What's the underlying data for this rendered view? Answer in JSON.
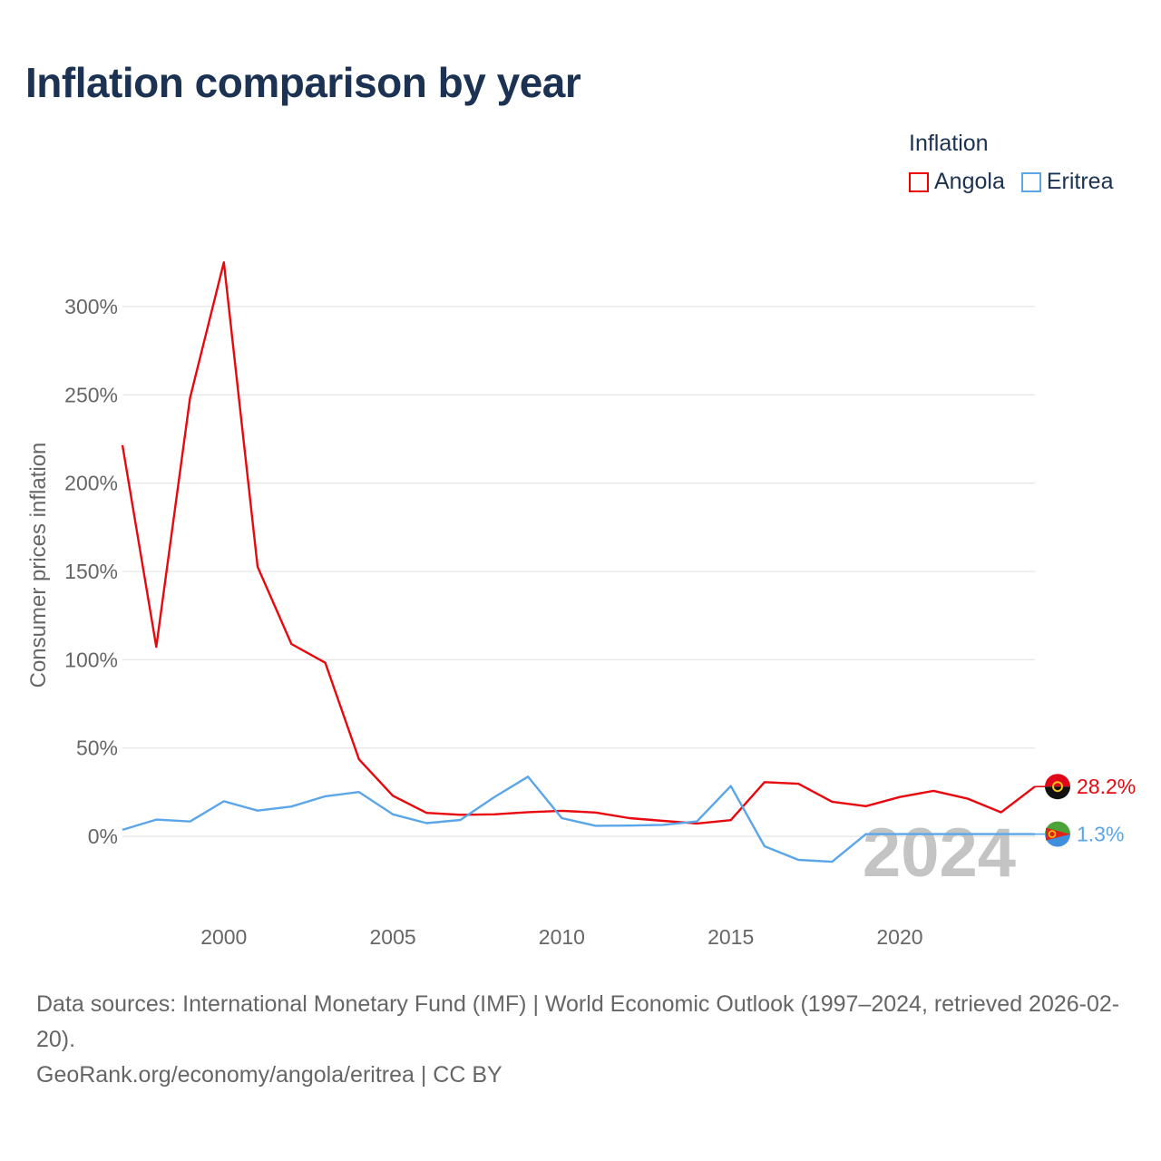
{
  "title": "Inflation comparison by year",
  "legend": {
    "title": "Inflation",
    "items": [
      {
        "label": "Angola",
        "color": "#e8080d"
      },
      {
        "label": "Eritrea",
        "color": "#5ba6e8"
      }
    ]
  },
  "source": {
    "line1": "Data sources: International Monetary Fund (IMF) | World Economic Outlook (1997–2024, retrieved 2026-02-20).",
    "line2": "GeoRank.org/economy/angola/eritrea | CC BY"
  },
  "chart_data": {
    "type": "line",
    "title": "Inflation comparison by year",
    "xlabel": "",
    "ylabel": "Consumer prices inflation",
    "xlim": [
      1997,
      2024
    ],
    "ylim": [
      -40,
      340
    ],
    "yticks": [
      0,
      50,
      100,
      150,
      200,
      250,
      300
    ],
    "ytick_labels": [
      "0%",
      "50%",
      "100%",
      "150%",
      "200%",
      "250%",
      "300%"
    ],
    "xticks": [
      2000,
      2005,
      2010,
      2015,
      2020
    ],
    "xtick_labels": [
      "2000",
      "2005",
      "2010",
      "2015",
      "2020"
    ],
    "grid": true,
    "current_year_label": "2024",
    "x": [
      1997,
      1998,
      1999,
      2000,
      2001,
      2002,
      2003,
      2004,
      2005,
      2006,
      2007,
      2008,
      2009,
      2010,
      2011,
      2012,
      2013,
      2014,
      2015,
      2016,
      2017,
      2018,
      2019,
      2020,
      2021,
      2022,
      2023,
      2024
    ],
    "series": [
      {
        "name": "Angola",
        "color": "#e8080d",
        "end_label": "28.2%",
        "values": [
          221.5,
          107.3,
          248.2,
          325.0,
          152.6,
          108.9,
          98.3,
          43.6,
          23.0,
          13.3,
          12.2,
          12.5,
          13.7,
          14.5,
          13.5,
          10.3,
          8.8,
          7.3,
          9.2,
          30.7,
          29.8,
          19.6,
          17.1,
          22.3,
          25.8,
          21.4,
          13.6,
          28.2
        ]
      },
      {
        "name": "Eritrea",
        "color": "#5ba6e8",
        "end_label": "1.3%",
        "values": [
          3.7,
          9.5,
          8.4,
          19.9,
          14.6,
          16.9,
          22.7,
          25.1,
          12.5,
          7.5,
          9.3,
          22.2,
          33.8,
          10.3,
          6.0,
          6.1,
          6.5,
          8.5,
          28.5,
          -5.6,
          -13.3,
          -14.4,
          1.3,
          1.3,
          1.3,
          1.3,
          1.3,
          1.3
        ]
      }
    ]
  }
}
